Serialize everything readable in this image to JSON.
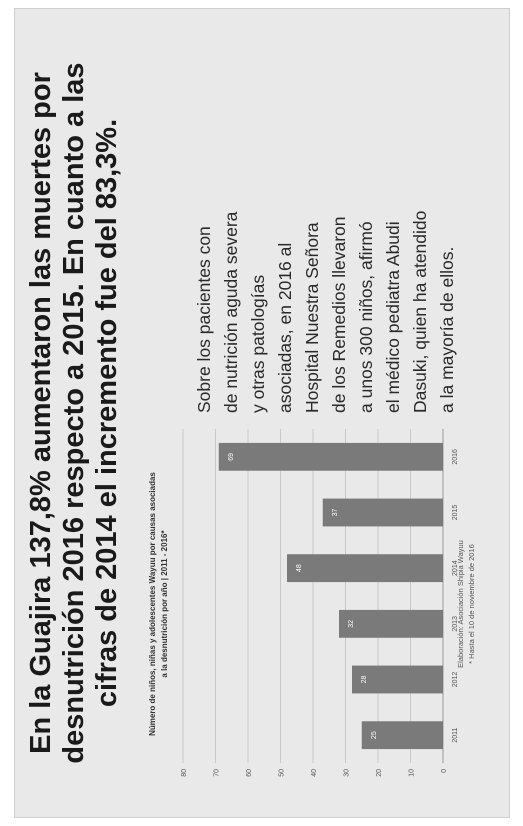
{
  "headline": [
    "En la Guajira 137,8% aumentaron las muertes por",
    "desnutrición 2016 respecto a 2015. En cuanto a las",
    "cifras de 2014 el incremento fue del 83,3%."
  ],
  "body_text": [
    "Sobre los pacientes con",
    "de nutrición aguda severa",
    "y otras patologías",
    "asociadas, en 2016 al",
    "Hospital Nuestra Señora",
    "de los Remedios llevaron",
    "a unos 300 niños, afirmó",
    "el médico pediatra Abudi",
    "Dasuki, quien ha atendido",
    "a la mayoría de ellos."
  ],
  "chart_data": {
    "type": "bar",
    "title": "Número de niños, niñas y adolescentes Wayuu por causas asociadas a la desnutrición por año | 2011 - 2016*",
    "title_lines": [
      "Número de niños, niñas y adolescentes Wayuu por causas asociadas",
      "a la desnutrición por año | 2011 - 2016*"
    ],
    "categories": [
      "2011",
      "2012",
      "2013",
      "2014",
      "2015",
      "2016"
    ],
    "values": [
      25,
      28,
      32,
      48,
      37,
      69
    ],
    "ylim": [
      0,
      80
    ],
    "yticks": [
      "0",
      "10",
      "20",
      "30",
      "40",
      "50",
      "60",
      "70",
      "80"
    ],
    "grid": true,
    "bar_color": "#7a7a7a",
    "notes": [
      "Elaboración: Asociación Shipia Wayuu",
      "* Hasta el 10 de noviembre de 2016"
    ]
  }
}
